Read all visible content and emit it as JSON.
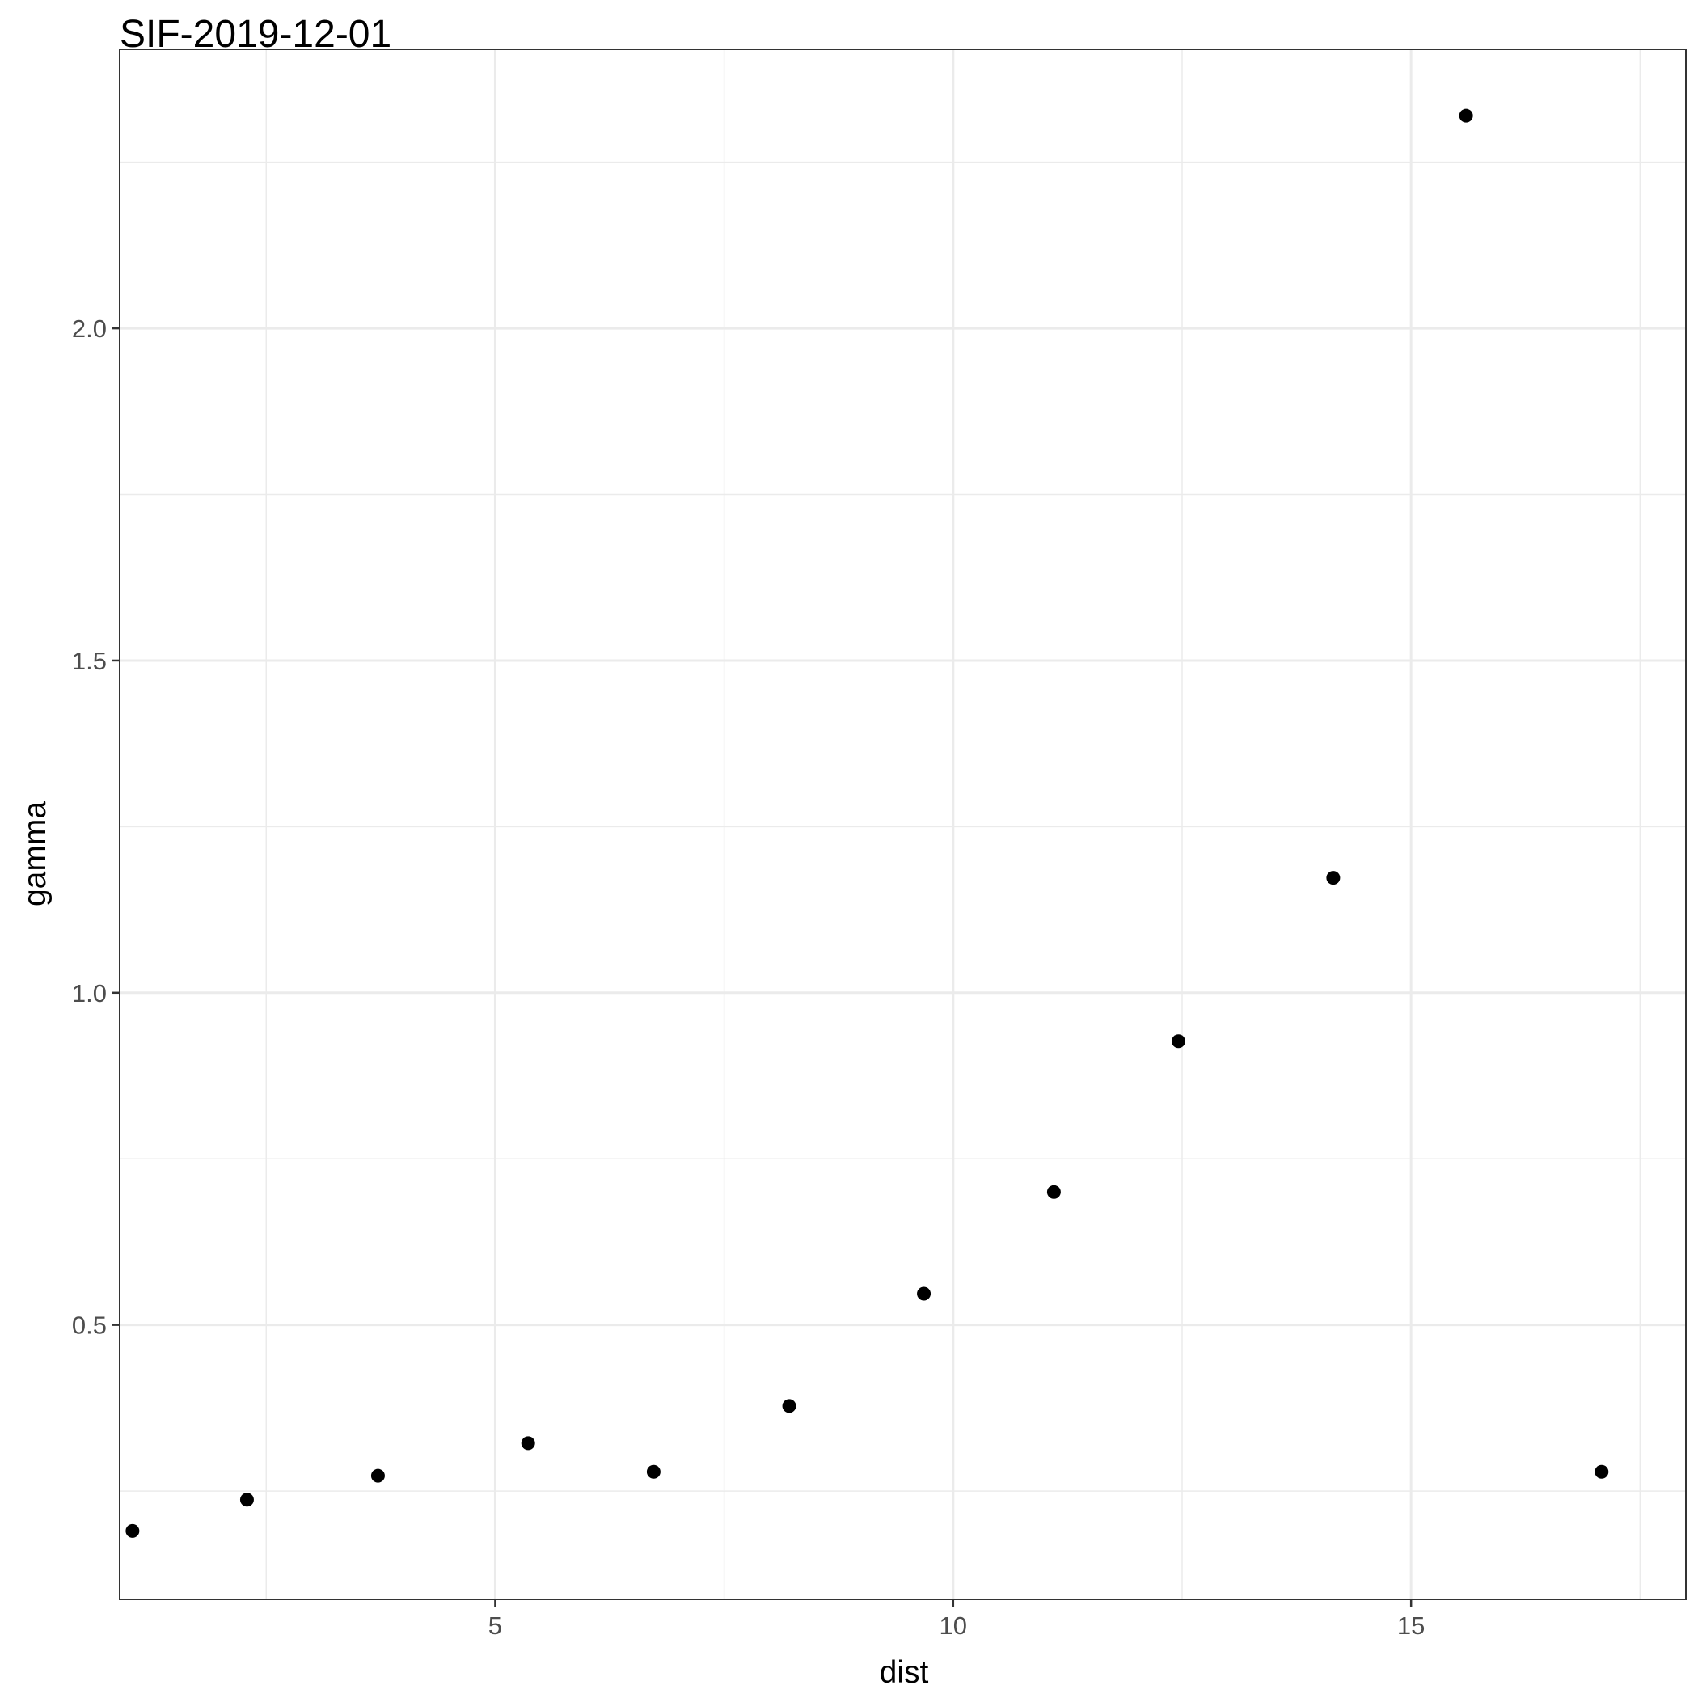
{
  "chart_data": {
    "type": "scatter",
    "title": "SIF-2019-12-01",
    "xlabel": "dist",
    "ylabel": "gamma",
    "xlim": [
      0.9,
      18.0
    ],
    "ylim": [
      0.087,
      2.42
    ],
    "x_major_ticks": [
      5,
      10,
      15
    ],
    "x_minor_ticks": [
      2.5,
      7.5,
      12.5,
      17.5
    ],
    "y_major_ticks": [
      0.5,
      1.0,
      1.5,
      2.0
    ],
    "y_minor_ticks": [
      0.25,
      0.75,
      1.25,
      1.75,
      2.25
    ],
    "x_tick_labels": [
      "5",
      "10",
      "15"
    ],
    "y_tick_labels": [
      "0.5",
      "1.0",
      "1.5",
      "2.0"
    ],
    "grid": true,
    "x": [
      1.04,
      2.29,
      3.72,
      5.36,
      6.73,
      8.21,
      9.68,
      11.1,
      12.46,
      14.15,
      15.6,
      17.08
    ],
    "y": [
      0.19,
      0.237,
      0.273,
      0.322,
      0.279,
      0.378,
      0.547,
      0.7,
      0.927,
      1.173,
      2.32,
      0.279
    ],
    "point_color": "#000000",
    "panel_border_color": "#333333",
    "grid_color": "#ebebeb",
    "background": "#ffffff"
  }
}
